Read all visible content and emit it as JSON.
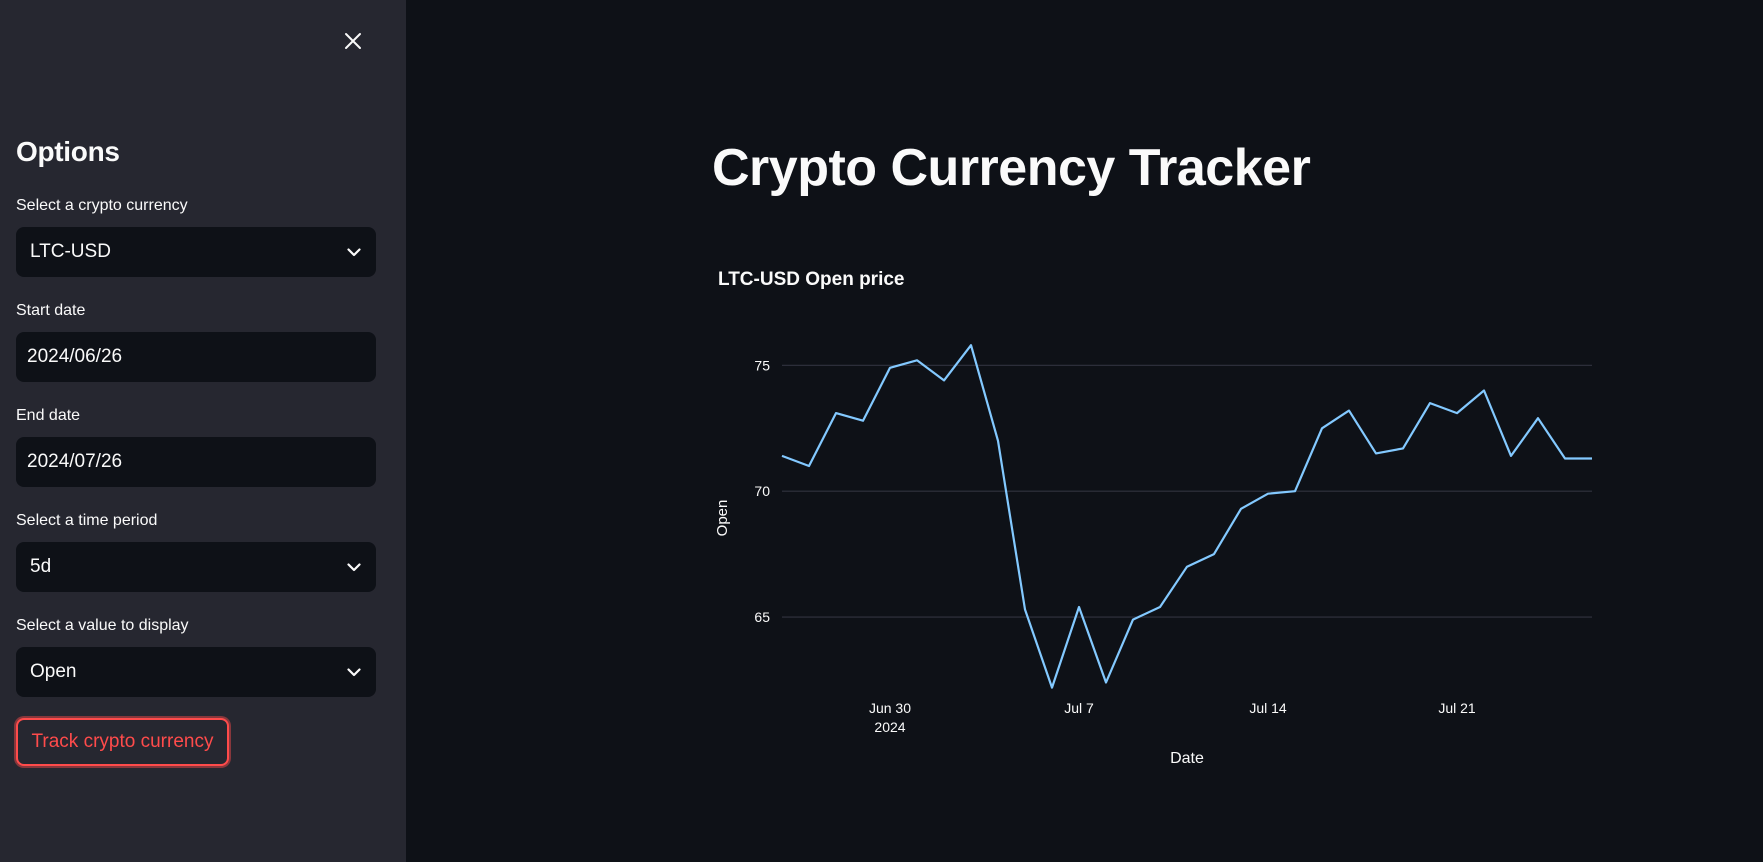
{
  "sidebar": {
    "title": "Options",
    "fields": [
      {
        "label": "Select a crypto currency",
        "value": "LTC-USD",
        "type": "select"
      },
      {
        "label": "Start date",
        "value": "2024/06/26",
        "type": "date"
      },
      {
        "label": "End date",
        "value": "2024/07/26",
        "type": "date"
      },
      {
        "label": "Select a time period",
        "value": "5d",
        "type": "select"
      },
      {
        "label": "Select a value to display",
        "value": "Open",
        "type": "select"
      }
    ],
    "button_label": "Track crypto currency"
  },
  "main": {
    "title": "Crypto Currency Tracker"
  },
  "colors": {
    "sidebar_bg": "#262730",
    "main_bg": "#0e1117",
    "accent": "#ff4b4b",
    "line": "#83c9ff",
    "grid": "#31333f"
  },
  "icons": {
    "close": "close-icon",
    "dropdown": "chevron-down-icon"
  },
  "chart_data": {
    "type": "line",
    "title": "LTC-USD Open price",
    "xlabel": "Date",
    "ylabel": "Open",
    "x_start": "2024-06-26",
    "x_end": "2024-07-26",
    "xlim": [
      "2024-06-26",
      "2024-07-26"
    ],
    "ylim": [
      62.5,
      76.8
    ],
    "yticks": [
      65,
      70,
      75
    ],
    "xticks": [
      {
        "date": "2024-06-30",
        "label": "Jun 30",
        "sublabel": "2024"
      },
      {
        "date": "2024-07-07",
        "label": "Jul 7"
      },
      {
        "date": "2024-07-14",
        "label": "Jul 14"
      },
      {
        "date": "2024-07-21",
        "label": "Jul 21"
      }
    ],
    "grid": true,
    "series": [
      {
        "x": [
          "2024-06-26",
          "2024-06-27",
          "2024-06-28",
          "2024-06-29",
          "2024-06-30",
          "2024-07-01",
          "2024-07-02",
          "2024-07-03",
          "2024-07-04",
          "2024-07-05",
          "2024-07-06",
          "2024-07-07",
          "2024-07-08",
          "2024-07-09",
          "2024-07-10",
          "2024-07-11",
          "2024-07-12",
          "2024-07-13",
          "2024-07-14",
          "2024-07-15",
          "2024-07-16",
          "2024-07-17",
          "2024-07-18",
          "2024-07-19",
          "2024-07-20",
          "2024-07-21",
          "2024-07-22",
          "2024-07-23",
          "2024-07-24",
          "2024-07-25",
          "2024-07-26"
        ],
        "values": [
          71.4,
          71.0,
          73.1,
          72.8,
          74.9,
          75.2,
          74.4,
          75.8,
          72.0,
          65.3,
          62.2,
          65.4,
          62.4,
          64.9,
          65.4,
          67.0,
          67.5,
          69.3,
          69.9,
          70.0,
          72.5,
          73.2,
          71.5,
          71.7,
          73.5,
          73.1,
          74.0,
          71.4,
          72.9,
          71.3,
          71.3
        ]
      }
    ]
  }
}
